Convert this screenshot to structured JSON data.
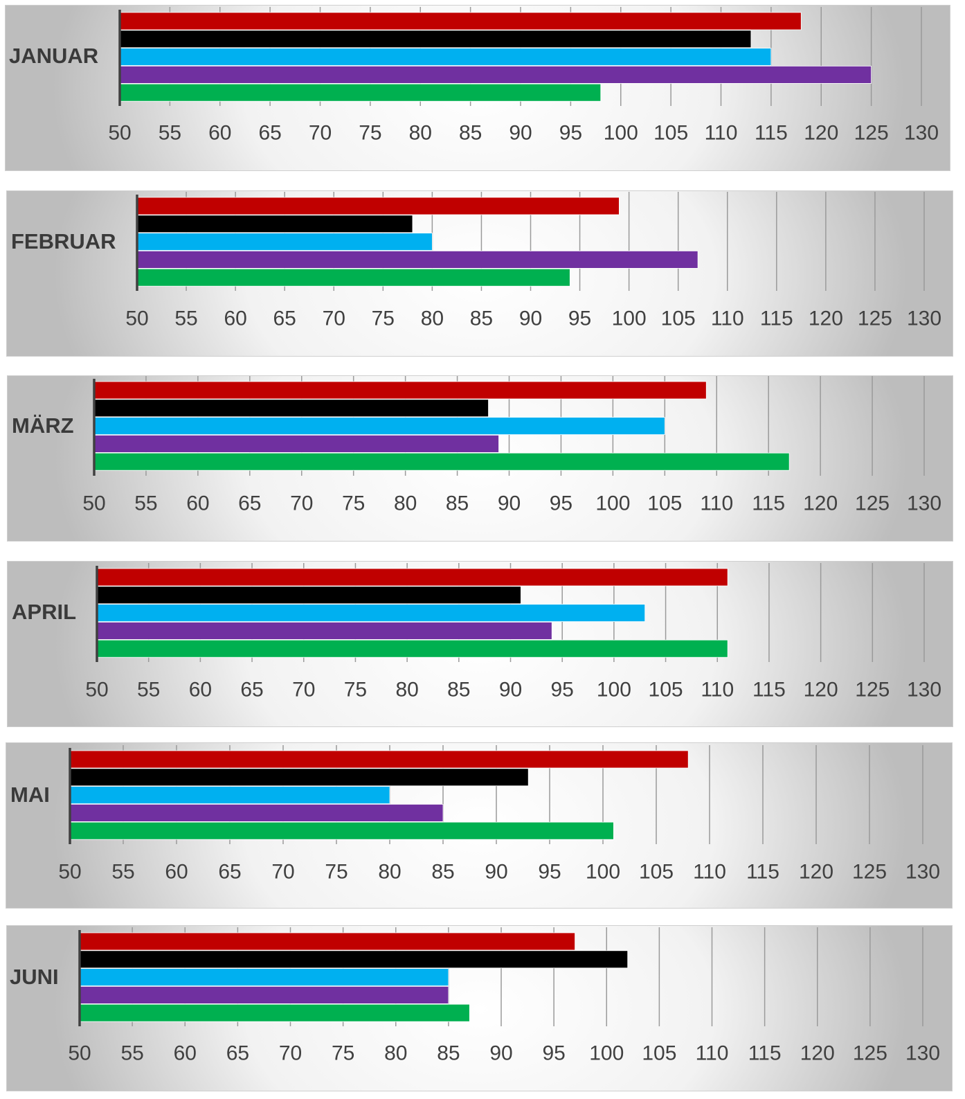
{
  "colors": {
    "series": [
      "#c00000",
      "#000000",
      "#00b0f0",
      "#7030a0",
      "#00b050"
    ],
    "axis": "#404040",
    "grid": "#9a9a9a",
    "tick_text": "#404040"
  },
  "chart_data": [
    {
      "type": "bar",
      "orientation": "horizontal",
      "category": "JANUAR",
      "x": {
        "min": 50,
        "max": 130,
        "step": 5,
        "ticks": [
          50,
          55,
          60,
          65,
          70,
          75,
          80,
          85,
          90,
          95,
          100,
          105,
          110,
          115,
          120,
          125,
          130
        ]
      },
      "grid": true,
      "values": [
        118,
        113,
        115,
        125,
        98
      ]
    },
    {
      "type": "bar",
      "orientation": "horizontal",
      "category": "FEBRUAR",
      "x": {
        "min": 50,
        "max": 130,
        "step": 5,
        "ticks": [
          50,
          55,
          60,
          65,
          70,
          75,
          80,
          85,
          90,
          95,
          100,
          105,
          110,
          115,
          120,
          125,
          130
        ]
      },
      "grid": true,
      "values": [
        99,
        78,
        80,
        107,
        94
      ]
    },
    {
      "type": "bar",
      "orientation": "horizontal",
      "category": "MÄRZ",
      "x": {
        "min": 50,
        "max": 130,
        "step": 5,
        "ticks": [
          50,
          55,
          60,
          65,
          70,
          75,
          80,
          85,
          90,
          95,
          100,
          105,
          110,
          115,
          120,
          125,
          130
        ]
      },
      "grid": true,
      "values": [
        109,
        88,
        105,
        89,
        117
      ]
    },
    {
      "type": "bar",
      "orientation": "horizontal",
      "category": "APRIL",
      "x": {
        "min": 50,
        "max": 130,
        "step": 5,
        "ticks": [
          50,
          55,
          60,
          65,
          70,
          75,
          80,
          85,
          90,
          95,
          100,
          105,
          110,
          115,
          120,
          125,
          130
        ]
      },
      "grid": true,
      "values": [
        111,
        91,
        103,
        94,
        111
      ]
    },
    {
      "type": "bar",
      "orientation": "horizontal",
      "category": "MAI",
      "x": {
        "min": 50,
        "max": 130,
        "step": 5,
        "ticks": [
          50,
          55,
          60,
          65,
          70,
          75,
          80,
          85,
          90,
          95,
          100,
          105,
          110,
          115,
          120,
          125,
          130
        ]
      },
      "grid": true,
      "values": [
        108,
        93,
        80,
        85,
        101
      ]
    },
    {
      "type": "bar",
      "orientation": "horizontal",
      "category": "JUNI",
      "x": {
        "min": 50,
        "max": 130,
        "step": 5,
        "ticks": [
          50,
          55,
          60,
          65,
          70,
          75,
          80,
          85,
          90,
          95,
          100,
          105,
          110,
          115,
          120,
          125,
          130
        ]
      },
      "grid": true,
      "values": [
        97,
        102,
        85,
        85,
        87
      ]
    }
  ]
}
